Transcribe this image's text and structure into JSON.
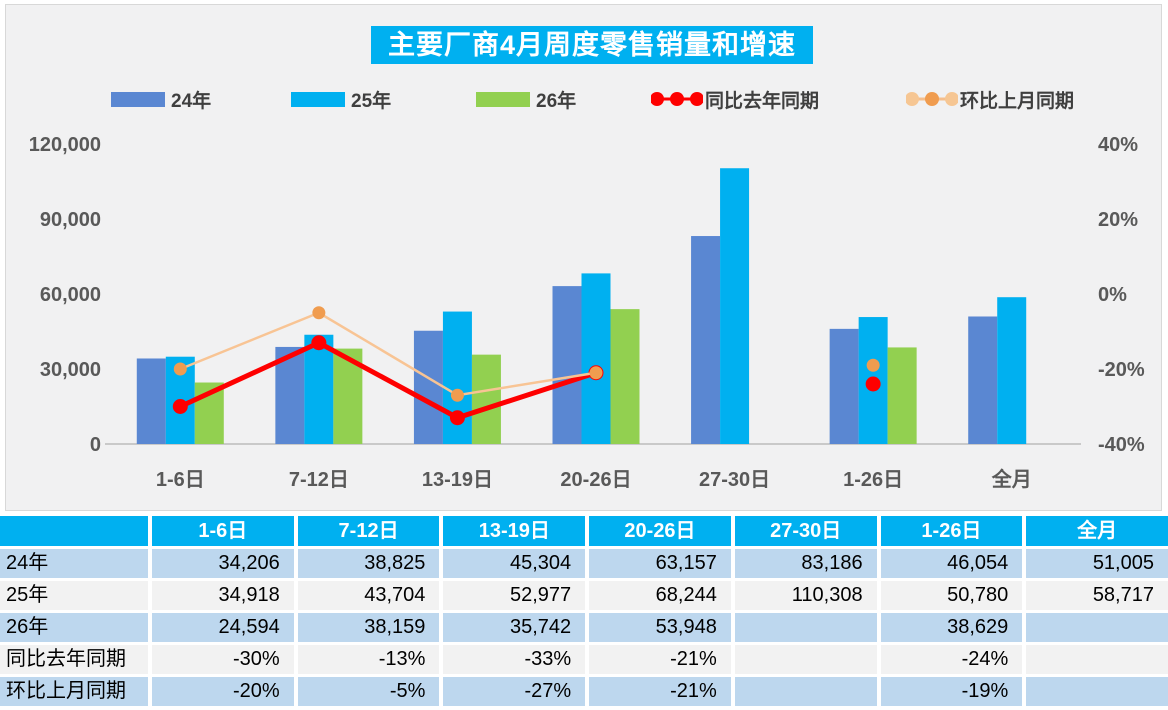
{
  "title": "主要厂商4月周度零售销量和增速",
  "colors": {
    "accent_cyan": "#00B0F0",
    "bar_blue": "#5A87D2",
    "bar_cyan": "#00B0F0",
    "bar_green": "#92D050",
    "line_red": "#FE0000",
    "line_orange": "#F8C494",
    "marker_orange": "#F09C4F",
    "axis_text": "#595959",
    "baseline": "#C9C9C9",
    "table_row_blue": "#BDD7EE",
    "table_row_gray": "#F2F2F2",
    "panel_bg": "#F1F1F2"
  },
  "legend": {
    "items": [
      {
        "label": "24年",
        "swatch": "bar",
        "color": "#5A87D2"
      },
      {
        "label": "25年",
        "swatch": "bar",
        "color": "#00B0F0"
      },
      {
        "label": "26年",
        "swatch": "bar",
        "color": "#92D050"
      },
      {
        "label": "同比去年同期",
        "swatch": "line",
        "line_color": "#FE0000",
        "dot_colors": [
          "#FE0000",
          "#FE0000",
          "#FE0000"
        ]
      },
      {
        "label": "环比上月同期",
        "swatch": "line",
        "line_color": "#F5BE8C",
        "dot_colors": [
          "#F6C693",
          "#F09C4F",
          "#F6C693"
        ]
      }
    ]
  },
  "chart_data": {
    "type": "bar",
    "categories": [
      "1-6日",
      "7-12日",
      "13-19日",
      "20-26日",
      "27-30日",
      "1-26日",
      "全月"
    ],
    "series": [
      {
        "name": "24年",
        "type": "bar",
        "color": "#5A87D2",
        "axis": "left",
        "values": [
          34206,
          38825,
          45304,
          63157,
          83186,
          46054,
          51005
        ]
      },
      {
        "name": "25年",
        "type": "bar",
        "color": "#00B0F0",
        "axis": "left",
        "values": [
          34918,
          43704,
          52977,
          68244,
          110308,
          50780,
          58717
        ]
      },
      {
        "name": "26年",
        "type": "bar",
        "color": "#92D050",
        "axis": "left",
        "values": [
          24594,
          38159,
          35742,
          53948,
          null,
          38629,
          null
        ]
      },
      {
        "name": "同比去年同期",
        "type": "line",
        "axis": "right",
        "line_color": "#FE0000",
        "marker_color": "#FE0000",
        "line_width": 5,
        "marker_r": 7.5,
        "values": [
          -30,
          -13,
          -33,
          -21,
          null,
          -24,
          null
        ]
      },
      {
        "name": "环比上月同期",
        "type": "line",
        "axis": "right",
        "line_color": "#F8C494",
        "marker_color": "#F09C4F",
        "line_width": 2.5,
        "marker_r": 6.5,
        "values": [
          -20,
          -5,
          -27,
          -21,
          null,
          -19,
          null
        ]
      }
    ],
    "left_axis": {
      "min": 0,
      "max": 120000,
      "ticks": [
        "0",
        "30,000",
        "60,000",
        "90,000",
        "120,000"
      ],
      "tick_values": [
        0,
        30000,
        60000,
        90000,
        120000
      ]
    },
    "right_axis": {
      "min": -40,
      "max": 40,
      "ticks": [
        "-40%",
        "-20%",
        "0%",
        "20%",
        "40%"
      ],
      "tick_values": [
        -40,
        -20,
        0,
        20,
        40
      ]
    },
    "grid": false,
    "legend_position": "top"
  },
  "table": {
    "headers": [
      "",
      "1-6日",
      "7-12日",
      "13-19日",
      "20-26日",
      "27-30日",
      "1-26日",
      "全月"
    ],
    "rows": [
      {
        "label": "24年",
        "style": "blue",
        "cells": [
          "34,206",
          "38,825",
          "45,304",
          "63,157",
          "83,186",
          "46,054",
          "51,005"
        ]
      },
      {
        "label": "25年",
        "style": "gray",
        "cells": [
          "34,918",
          "43,704",
          "52,977",
          "68,244",
          "110,308",
          "50,780",
          "58,717"
        ]
      },
      {
        "label": "26年",
        "style": "blue",
        "cells": [
          "24,594",
          "38,159",
          "35,742",
          "53,948",
          "",
          "38,629",
          ""
        ]
      },
      {
        "label": "同比去年同期",
        "style": "gray",
        "cells": [
          "-30%",
          "-13%",
          "-33%",
          "-21%",
          "",
          "-24%",
          ""
        ]
      },
      {
        "label": "环比上月同期",
        "style": "blue",
        "cells": [
          "-20%",
          "-5%",
          "-27%",
          "-21%",
          "",
          "-19%",
          ""
        ]
      }
    ]
  }
}
